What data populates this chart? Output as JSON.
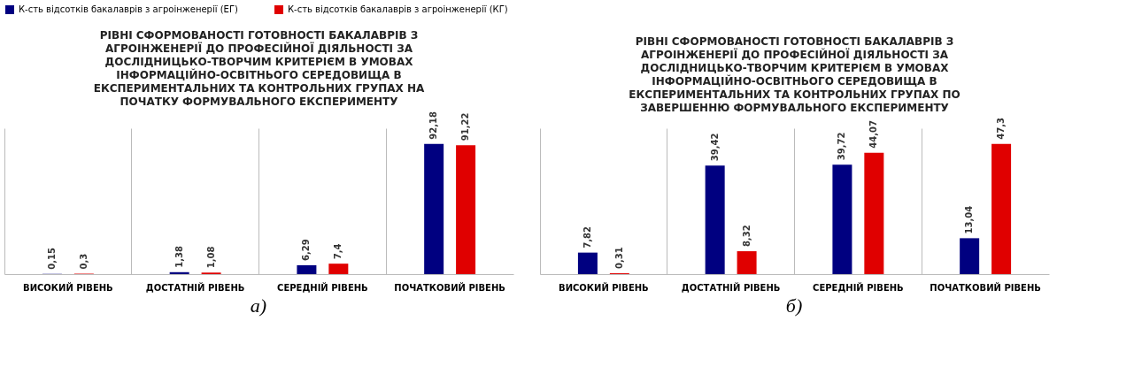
{
  "chart_data": [
    {
      "type": "bar",
      "title": "РІВНІ СФОРМОВАНОСТІ ГОТОВНОСТІ БАКАЛАВРІВ З\nАГРОІНЖЕНЕРІЇ ДО ПРОФЕСІЙНОЇ ДІЯЛЬНОСТІ ЗА\nДОСЛІДНИЦЬКО-ТВОРЧИМ КРИТЕРІЄМ В УМОВАХ\nІНФОРМАЦІЙНО-ОСВІТНЬОГО СЕРЕДОВИЩА В\nЕКСПЕРИМЕНТАЛЬНИХ ТА КОНТРОЛЬНИХ ГРУПАХ НА\nПОЧАТКУ ФОРМУВАЛЬНОГО ЕКСПЕРИМЕНТУ",
      "categories": [
        "ВИСОКИЙ РІВЕНЬ",
        "ДОСТАТНІЙ РІВЕНЬ",
        "СЕРЕДНІЙ РІВЕНЬ",
        "ПОЧАТКОВИЙ РІВЕНЬ"
      ],
      "series": [
        {
          "name": "К-сть відсотків бакалаврів з агроінженерії (ЕГ)",
          "color": "#000080",
          "values": [
            0.15,
            1.38,
            6.29,
            92.18
          ],
          "value_labels": [
            "0,15",
            "1,38",
            "6,29",
            "92,18"
          ]
        },
        {
          "name": "К-сть відсотків бакалаврів з агроінженерії (КГ)",
          "color": "#e00000",
          "values": [
            0.3,
            1.08,
            7.4,
            91.22
          ],
          "value_labels": [
            "0,3",
            "1,08",
            "7,4",
            "91,22"
          ]
        }
      ],
      "legend": "top",
      "grid": "x",
      "annotations": [
        "а)"
      ]
    },
    {
      "type": "bar",
      "title": "РІВНІ СФОРМОВАНОСТІ ГОТОВНОСТІ БАКАЛАВРІВ З\nАГРОІНЖЕНЕРІЇ ДО ПРОФЕСІЙНОЇ ДІЯЛЬНОСТІ ЗА\nДОСЛІДНИЦЬКО-ТВОРЧИМ КРИТЕРІЄМ В УМОВАХ\nІНФОРМАЦІЙНО-ОСВІТНЬОГО СЕРЕДОВИЩА В\nЕКСПЕРИМЕНТАЛЬНИХ ТА КОНТРОЛЬНИХ ГРУПАХ ПО\nЗАВЕРШЕННЮ ФОРМУВАЛЬНОГО ЕКСПЕРИМЕНТУ",
      "categories": [
        "ВИСОКИЙ РІВЕНЬ",
        "ДОСТАТНІЙ РІВЕНЬ",
        "СЕРЕДНІЙ РІВЕНЬ",
        "ПОЧАТКОВИЙ РІВЕНЬ"
      ],
      "series": [
        {
          "name": "К-сть відсотків бакалаврів з агроінженерії (ЕГ)",
          "color": "#000080",
          "values": [
            7.82,
            39.42,
            39.72,
            13.04
          ],
          "value_labels": [
            "7,82",
            "39,42",
            "39,72",
            "13,04"
          ]
        },
        {
          "name": "К-сть відсотків бакалаврів з агроінженерії (КГ)",
          "color": "#e00000",
          "values": [
            0.31,
            8.32,
            44.07,
            47.3
          ],
          "value_labels": [
            "0,31",
            "8,32",
            "44,07",
            "47,3"
          ]
        }
      ],
      "legend": "top",
      "grid": "x",
      "annotations": [
        "б)"
      ]
    }
  ]
}
